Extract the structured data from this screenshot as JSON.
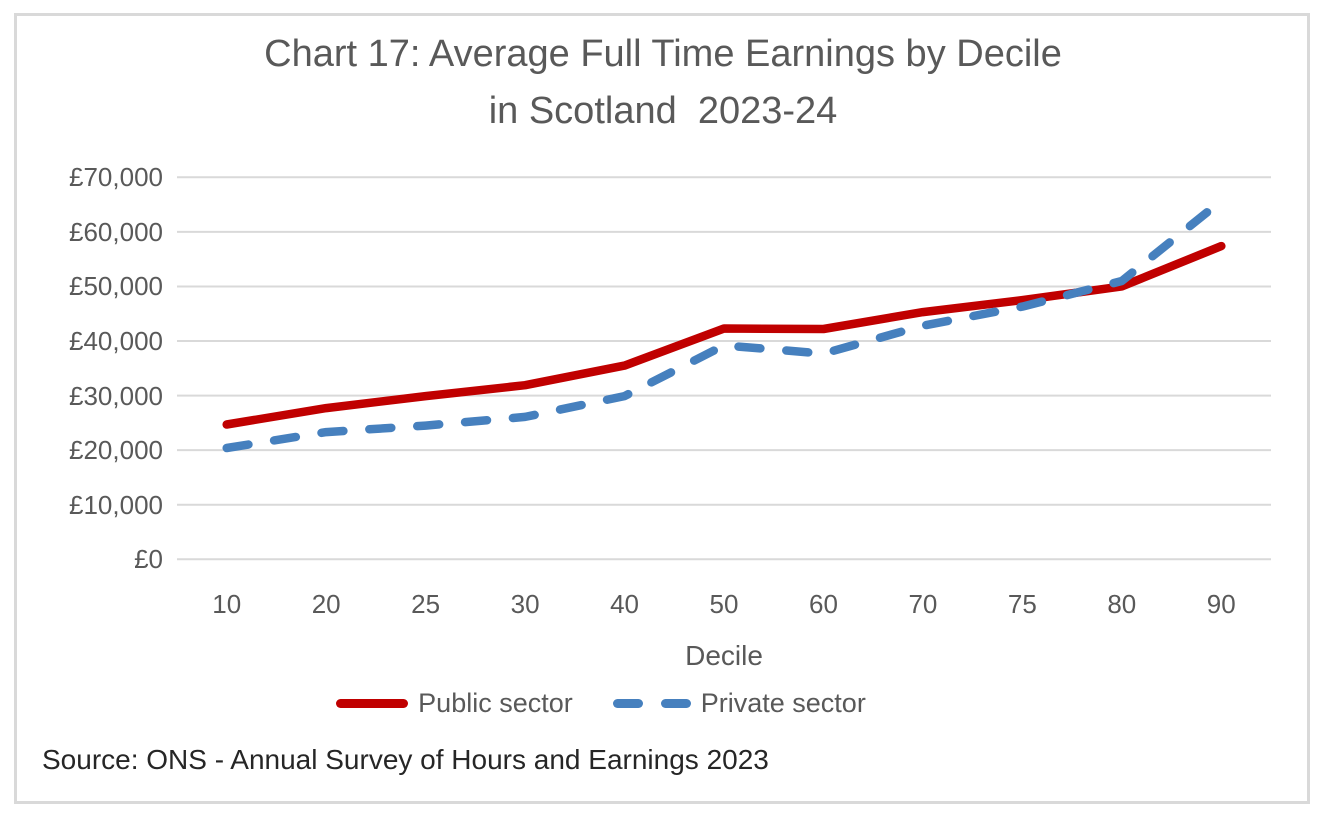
{
  "figure": {
    "title_line1": "Chart 17: Average Full Time Earnings by Decile",
    "title_line2": "in Scotland  2023-24",
    "source": "Source: ONS - Annual Survey of Hours and Earnings 2023"
  },
  "chart_data": {
    "type": "line",
    "title": "Chart 17: Average Full Time Earnings by Decile in Scotland 2023-24",
    "xlabel": "Decile",
    "ylabel": "",
    "categories": [
      "10",
      "20",
      "25",
      "30",
      "40",
      "50",
      "60",
      "70",
      "75",
      "80",
      "90"
    ],
    "series": [
      {
        "name": "Public sector",
        "style": "solid",
        "color": "#c00000",
        "values": [
          24700,
          27700,
          29900,
          31900,
          35500,
          42300,
          42200,
          45300,
          47500,
          50000,
          57400
        ]
      },
      {
        "name": "Private sector",
        "style": "dashed",
        "color": "#4680be",
        "values": [
          20400,
          23300,
          24500,
          26100,
          29900,
          39200,
          37700,
          42800,
          46300,
          51000,
          65700
        ]
      }
    ],
    "ylim": [
      0,
      70000
    ],
    "ytick_step": 10000,
    "ytick_labels": [
      "£0",
      "£10,000",
      "£20,000",
      "£30,000",
      "£40,000",
      "£50,000",
      "£60,000",
      "£70,000"
    ],
    "grid": "horizontal",
    "legend_position": "bottom"
  },
  "colors": {
    "public_line": "#c00000",
    "private_line": "#4680be",
    "axis_text": "#595959",
    "source_text": "#262626",
    "gridline": "#d9d9d9",
    "frame_border": "#d9d9d9",
    "background": "#ffffff"
  }
}
